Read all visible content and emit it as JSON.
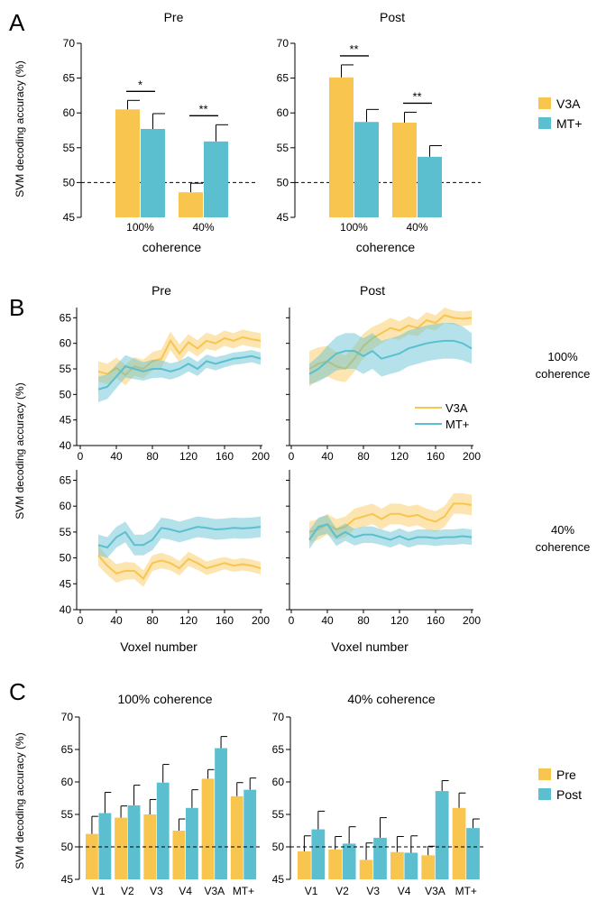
{
  "colors": {
    "v3a": "#F8C54F",
    "mt": "#5BBFD0",
    "pre": "#F8C54F",
    "post": "#5BBFD0"
  },
  "panels": {
    "a": "A",
    "b": "B",
    "c": "C"
  },
  "chart_data": [
    {
      "type": "bar",
      "panel": "A",
      "ylabel": "SVM decoding accuracy (%)",
      "xlabel": "coherence",
      "ylim": [
        45,
        70
      ],
      "yticks": [
        45,
        50,
        55,
        60,
        65,
        70
      ],
      "chance_level": 50,
      "legend": {
        "position": "right",
        "entries": [
          "V3A",
          "MT+"
        ]
      },
      "subplots": [
        {
          "title": "Pre",
          "categories": [
            "100%",
            "40%"
          ],
          "series": [
            {
              "name": "V3A",
              "values": [
                60.5,
                48.6
              ],
              "errors": [
                1.3,
                1.3
              ]
            },
            {
              "name": "MT+",
              "values": [
                57.7,
                55.9
              ],
              "errors": [
                2.2,
                2.4
              ]
            }
          ],
          "significance": [
            "*",
            "**"
          ]
        },
        {
          "title": "Post",
          "categories": [
            "100%",
            "40%"
          ],
          "series": [
            {
              "name": "V3A",
              "values": [
                65.1,
                58.6
              ],
              "errors": [
                1.8,
                1.5
              ]
            },
            {
              "name": "MT+",
              "values": [
                58.7,
                53.7
              ],
              "errors": [
                1.8,
                1.6
              ]
            }
          ],
          "significance": [
            "**",
            "**"
          ]
        }
      ]
    },
    {
      "type": "line",
      "panel": "B",
      "ylabel": "SVM decoding accuracy (%)",
      "xlabel": "Voxel number",
      "xlim": [
        0,
        200
      ],
      "xticks": [
        0,
        40,
        80,
        120,
        160,
        200
      ],
      "ylim": [
        40,
        67
      ],
      "yticks": [
        40,
        45,
        50,
        55,
        60,
        65
      ],
      "column_titles": [
        "Pre",
        "Post"
      ],
      "row_labels": [
        [
          "100%",
          "coherence"
        ],
        [
          "40%",
          "coherence"
        ]
      ],
      "legend": {
        "position": "inside bottom-right",
        "entries": [
          "V3A",
          "MT+"
        ]
      },
      "x": [
        20,
        30,
        40,
        50,
        60,
        70,
        80,
        90,
        100,
        110,
        120,
        130,
        140,
        150,
        160,
        170,
        180,
        190,
        200
      ],
      "subplots": [
        {
          "row": "100% coherence",
          "column": "Pre",
          "series": [
            {
              "name": "V3A",
              "values": [
                54.5,
                54.0,
                55.2,
                53.8,
                55.5,
                55.0,
                56.5,
                57.0,
                60.5,
                58.0,
                60.2,
                59.0,
                60.5,
                60.0,
                61.0,
                60.5,
                61.2,
                60.8,
                60.5
              ],
              "errors": [
                2.0,
                2.0,
                2.0,
                2.0,
                1.8,
                1.8,
                1.8,
                1.8,
                1.8,
                1.8,
                1.6,
                1.6,
                1.6,
                1.5,
                1.5,
                1.5,
                1.5,
                1.5,
                1.5
              ]
            },
            {
              "name": "MT+",
              "values": [
                51.0,
                51.5,
                53.5,
                55.5,
                55.0,
                54.5,
                55.0,
                55.0,
                54.5,
                55.0,
                56.0,
                55.0,
                56.5,
                56.0,
                56.5,
                57.0,
                57.2,
                57.5,
                57.0
              ],
              "errors": [
                2.5,
                2.4,
                2.3,
                2.2,
                2.0,
                1.8,
                1.8,
                1.7,
                1.6,
                1.5,
                1.5,
                1.4,
                1.3,
                1.3,
                1.2,
                1.2,
                1.2,
                1.2,
                1.2
              ]
            }
          ]
        },
        {
          "row": "100% coherence",
          "column": "Post",
          "series": [
            {
              "name": "V3A",
              "values": [
                55.0,
                56.0,
                56.5,
                55.5,
                55.0,
                57.0,
                59.5,
                61.0,
                62.0,
                63.0,
                62.5,
                63.5,
                63.0,
                64.5,
                64.0,
                65.5,
                65.0,
                64.8,
                65.0
              ],
              "errors": [
                3.5,
                3.2,
                3.0,
                2.8,
                2.6,
                2.5,
                2.4,
                2.2,
                2.0,
                2.0,
                1.8,
                1.8,
                1.6,
                1.6,
                1.5,
                1.5,
                1.4,
                1.4,
                1.4
              ]
            },
            {
              "name": "MT+",
              "values": [
                54.0,
                55.0,
                56.5,
                58.0,
                58.5,
                58.5,
                57.5,
                58.5,
                57.0,
                57.5,
                58.0,
                59.0,
                59.5,
                60.0,
                60.3,
                60.5,
                60.5,
                60.0,
                59.0
              ],
              "errors": [
                2.0,
                2.5,
                3.0,
                3.3,
                3.5,
                3.5,
                3.5,
                3.5,
                3.5,
                3.5,
                3.5,
                3.5,
                3.5,
                3.5,
                3.5,
                3.5,
                3.5,
                3.3,
                3.0
              ]
            }
          ]
        },
        {
          "row": "40% coherence",
          "column": "Pre",
          "series": [
            {
              "name": "V3A",
              "values": [
                50.5,
                48.5,
                47.0,
                47.5,
                47.5,
                46.0,
                49.0,
                49.5,
                49.0,
                48.0,
                49.8,
                49.0,
                48.0,
                48.5,
                49.0,
                48.5,
                48.8,
                48.5,
                48.0
              ],
              "errors": [
                2.0,
                1.8,
                1.8,
                1.7,
                1.6,
                1.6,
                1.5,
                1.5,
                1.4,
                1.4,
                1.4,
                1.3,
                1.3,
                1.3,
                1.2,
                1.2,
                1.2,
                1.2,
                1.2
              ]
            },
            {
              "name": "MT+",
              "values": [
                52.5,
                52.0,
                54.0,
                55.0,
                52.5,
                52.5,
                53.5,
                55.8,
                55.5,
                55.0,
                55.5,
                56.0,
                55.8,
                55.5,
                55.6,
                55.8,
                55.7,
                55.8,
                56.0
              ],
              "errors": [
                2.0,
                2.0,
                2.0,
                2.0,
                2.0,
                2.0,
                2.0,
                2.0,
                2.0,
                2.0,
                2.0,
                2.0,
                2.0,
                2.0,
                2.0,
                2.0,
                2.0,
                2.0,
                2.0
              ]
            }
          ]
        },
        {
          "row": "40% coherence",
          "column": "Post",
          "series": [
            {
              "name": "V3A",
              "values": [
                55.0,
                55.5,
                56.5,
                55.5,
                56.0,
                57.5,
                58.0,
                58.5,
                57.5,
                58.5,
                58.5,
                58.0,
                58.3,
                57.5,
                57.0,
                58.0,
                60.5,
                60.5,
                60.2
              ],
              "errors": [
                2.0,
                2.0,
                2.0,
                2.0,
                2.0,
                2.0,
                2.0,
                2.0,
                2.0,
                2.0,
                2.0,
                2.0,
                2.0,
                2.0,
                2.0,
                2.0,
                2.0,
                2.0,
                2.0
              ]
            },
            {
              "name": "MT+",
              "values": [
                53.5,
                56.0,
                56.5,
                54.0,
                55.0,
                54.0,
                54.5,
                54.5,
                54.0,
                53.5,
                54.2,
                53.5,
                54.0,
                54.0,
                53.8,
                54.0,
                54.0,
                54.2,
                54.0
              ],
              "errors": [
                1.8,
                1.8,
                1.8,
                1.7,
                1.7,
                1.6,
                1.6,
                1.6,
                1.5,
                1.5,
                1.5,
                1.5,
                1.5,
                1.5,
                1.5,
                1.5,
                1.5,
                1.5,
                1.5
              ]
            }
          ]
        }
      ]
    },
    {
      "type": "bar",
      "panel": "C",
      "ylabel": "SVM decoding accuracy (%)",
      "ylim": [
        45,
        70
      ],
      "yticks": [
        45,
        50,
        55,
        60,
        65,
        70
      ],
      "chance_level": 50,
      "categories": [
        "V1",
        "V2",
        "V3",
        "V4",
        "V3A",
        "MT+"
      ],
      "legend": {
        "position": "right",
        "entries": [
          "Pre",
          "Post"
        ]
      },
      "subplots": [
        {
          "title": "100% coherence",
          "series": [
            {
              "name": "Pre",
              "values": [
                52.0,
                54.5,
                55.0,
                52.5,
                60.5,
                57.8
              ],
              "errors": [
                2.7,
                1.8,
                2.3,
                1.8,
                1.4,
                2.1
              ]
            },
            {
              "name": "Post",
              "values": [
                55.2,
                56.4,
                59.9,
                56.0,
                65.2,
                58.8
              ],
              "errors": [
                3.2,
                3.1,
                2.8,
                2.8,
                1.8,
                1.8
              ]
            }
          ]
        },
        {
          "title": "40% coherence",
          "series": [
            {
              "name": "Pre",
              "values": [
                49.3,
                49.6,
                48.0,
                49.2,
                48.7,
                56.0
              ],
              "errors": [
                2.4,
                2.0,
                2.6,
                2.4,
                1.4,
                2.3
              ]
            },
            {
              "name": "Post",
              "values": [
                52.7,
                50.5,
                51.4,
                49.1,
                58.6,
                52.9
              ],
              "errors": [
                2.8,
                2.6,
                3.1,
                2.6,
                1.6,
                1.4
              ]
            }
          ]
        }
      ]
    }
  ]
}
